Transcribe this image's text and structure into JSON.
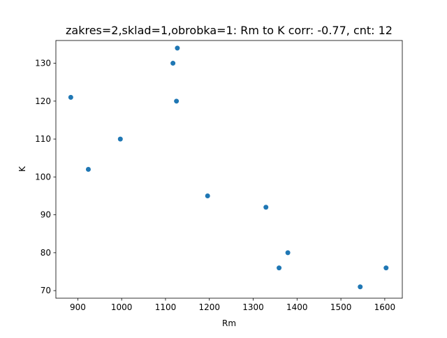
{
  "chart_data": {
    "type": "scatter",
    "title": "zakres=2,sklad=1,obrobka=1: Rm to K corr: -0.77, cnt: 12",
    "xlabel": "Rm",
    "ylabel": "K",
    "xlim": [
      850,
      1640
    ],
    "ylim": [
      68,
      136
    ],
    "xticks": [
      900,
      1000,
      1100,
      1200,
      1300,
      1400,
      1500,
      1600
    ],
    "yticks": [
      70,
      80,
      90,
      100,
      110,
      120,
      130
    ],
    "grid": false,
    "legend": "none",
    "marker_color": "#1f77b4",
    "points": [
      {
        "x": 884,
        "y": 121
      },
      {
        "x": 924,
        "y": 102
      },
      {
        "x": 997,
        "y": 110
      },
      {
        "x": 1117,
        "y": 130
      },
      {
        "x": 1125,
        "y": 120
      },
      {
        "x": 1127,
        "y": 134
      },
      {
        "x": 1196,
        "y": 95
      },
      {
        "x": 1329,
        "y": 92
      },
      {
        "x": 1359,
        "y": 76
      },
      {
        "x": 1379,
        "y": 80
      },
      {
        "x": 1544,
        "y": 71
      },
      {
        "x": 1603,
        "y": 76
      }
    ]
  }
}
